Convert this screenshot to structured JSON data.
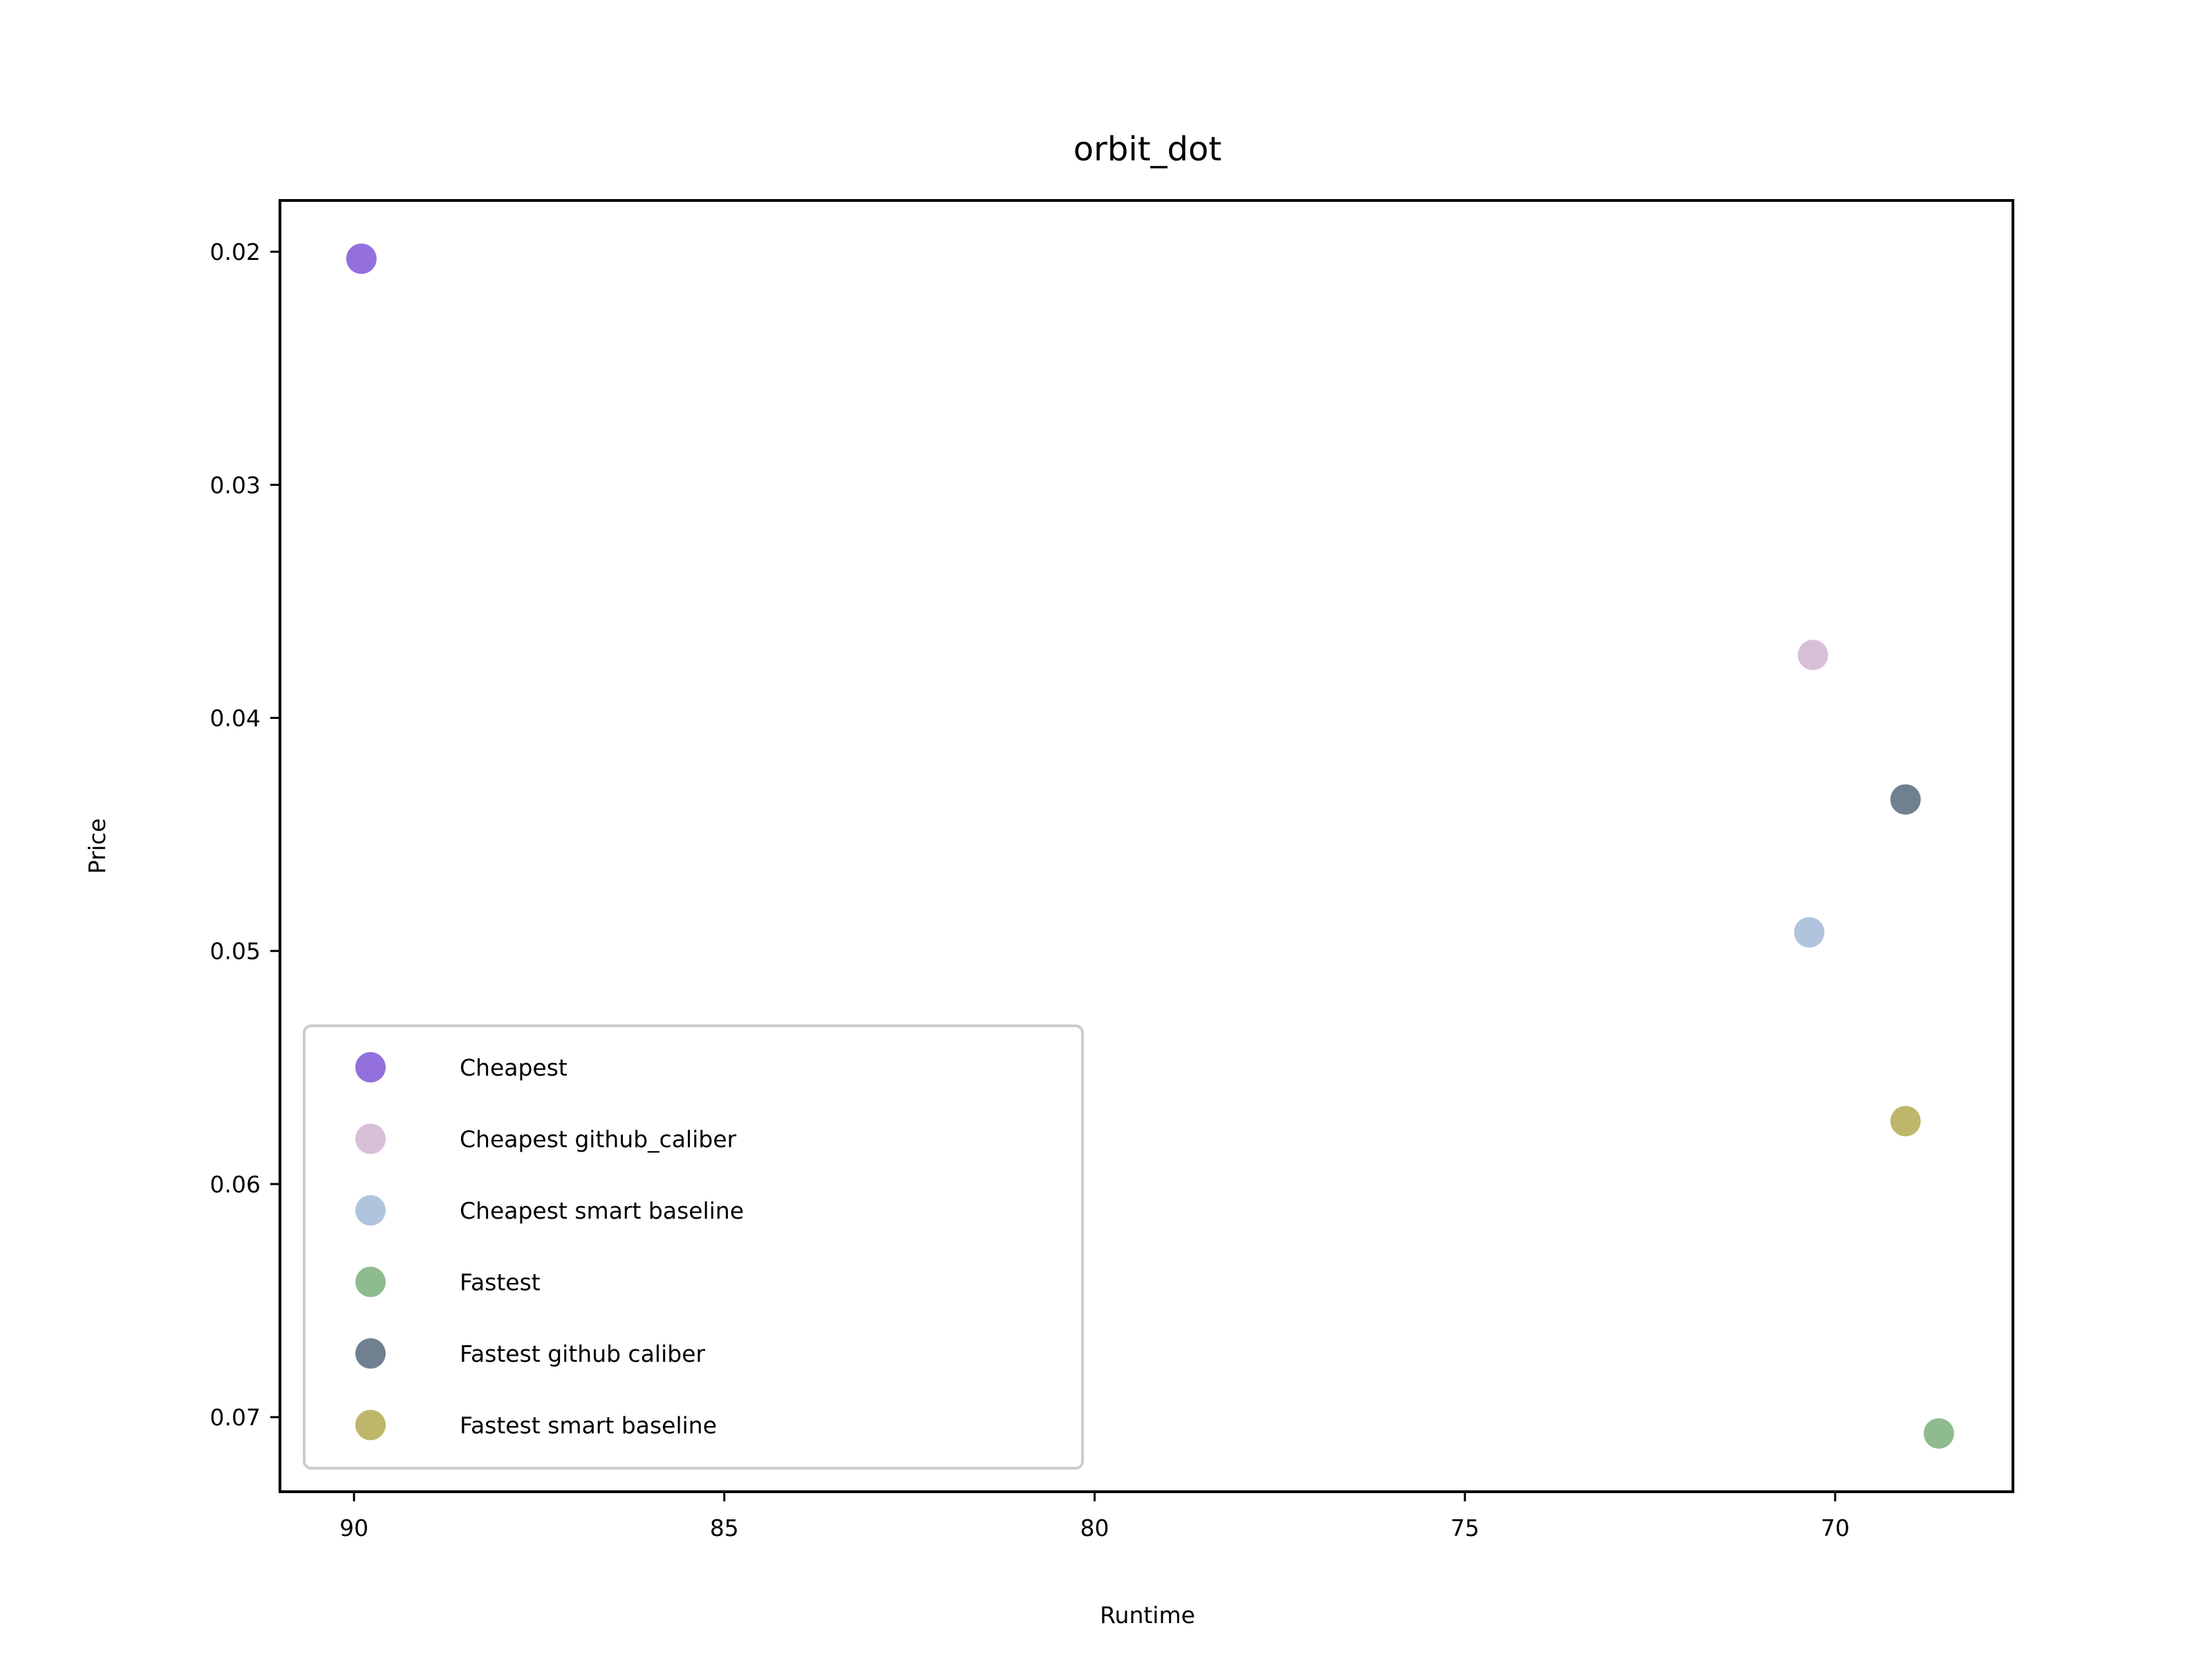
{
  "chart_data": {
    "type": "scatter",
    "title": "orbit_dot",
    "xlabel": "Runtime",
    "ylabel": "Price",
    "x_inverted": true,
    "y_inverted": true,
    "xlim": [
      91.0,
      67.6
    ],
    "ylim": [
      0.0178,
      0.0732
    ],
    "xticks": [
      90,
      85,
      80,
      75,
      70
    ],
    "xtick_labels": [
      "90",
      "85",
      "80",
      "75",
      "70"
    ],
    "yticks": [
      0.02,
      0.03,
      0.04,
      0.05,
      0.06,
      0.07
    ],
    "ytick_labels": [
      "0.02",
      "0.03",
      "0.04",
      "0.05",
      "0.06",
      "0.07"
    ],
    "grid": false,
    "legend_position": "lower-left",
    "series": [
      {
        "name": "Cheapest",
        "color": "#9370db",
        "x": [
          89.9
        ],
        "y": [
          0.0203
        ]
      },
      {
        "name": "Cheapest github_caliber",
        "color": "#d8bfd8",
        "x": [
          70.3
        ],
        "y": [
          0.0373
        ]
      },
      {
        "name": "Cheapest smart baseline",
        "color": "#b0c4de",
        "x": [
          70.35
        ],
        "y": [
          0.0492
        ]
      },
      {
        "name": "Fastest",
        "color": "#8fbc8f",
        "x": [
          68.6
        ],
        "y": [
          0.0707
        ]
      },
      {
        "name": "Fastest github caliber",
        "color": "#708090",
        "x": [
          69.05
        ],
        "y": [
          0.0435
        ]
      },
      {
        "name": "Fastest smart baseline",
        "color": "#bdb76b",
        "x": [
          69.05
        ],
        "y": [
          0.0573
        ]
      }
    ]
  }
}
